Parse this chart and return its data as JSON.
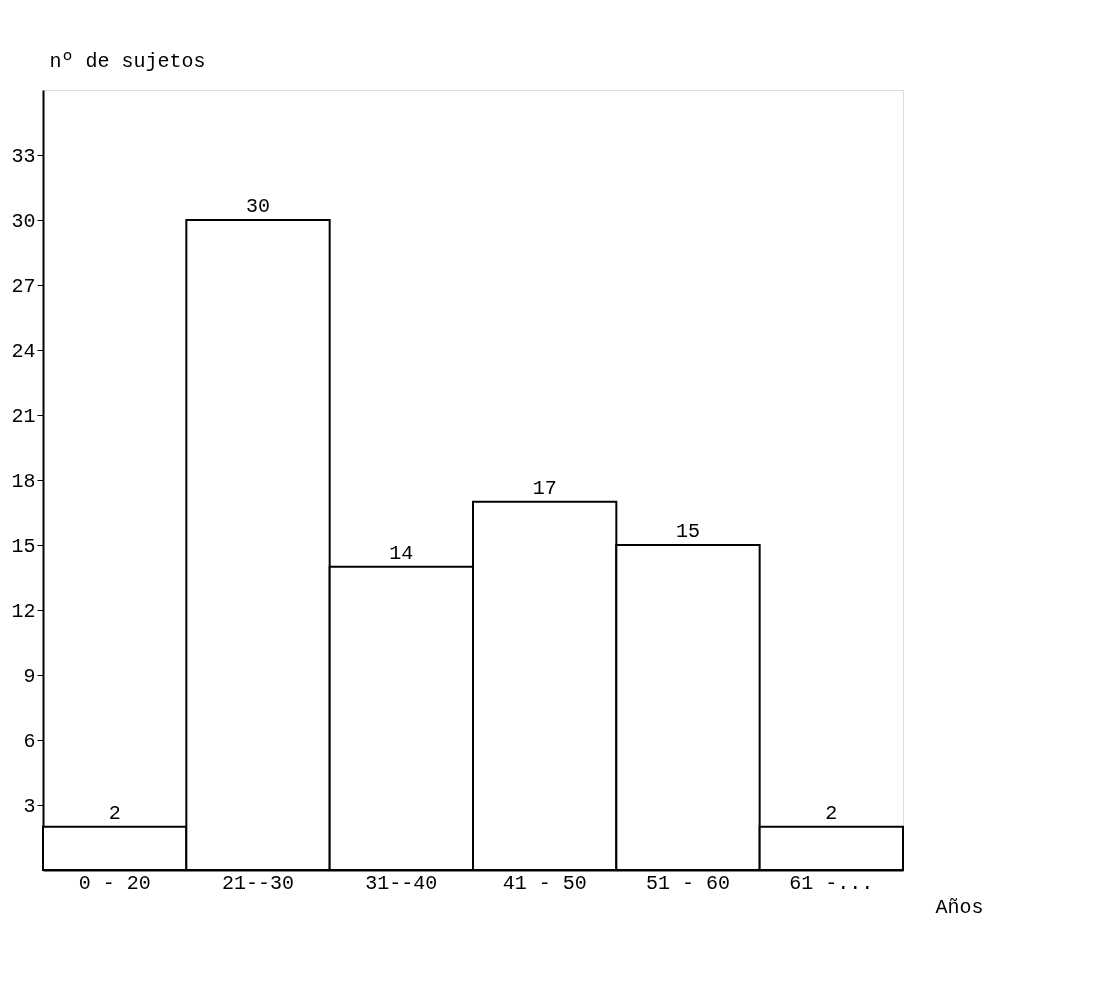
{
  "chart_data": {
    "type": "bar",
    "xlabel": "Años",
    "ylabel": "nº de sujetos",
    "categories": [
      "0 - 20",
      "21--30",
      "31--40",
      "41 - 50",
      "51 - 60",
      "61 -..."
    ],
    "values": [
      2,
      30,
      14,
      17,
      15,
      2
    ],
    "color": "#ffffff",
    "ylim": [
      0,
      36
    ],
    "yticks": [
      3,
      6,
      9,
      12,
      15,
      18,
      21,
      24,
      27,
      30,
      33
    ],
    "data_labels": true,
    "grid": false
  }
}
